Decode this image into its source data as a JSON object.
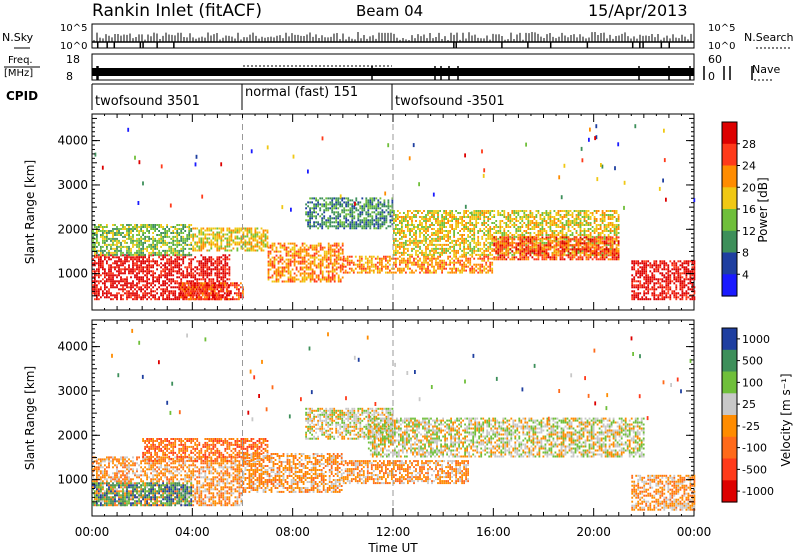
{
  "header": {
    "station": "Rankin Inlet (fitACF)",
    "beam": "Beam 04",
    "date": "15/Apr/2013"
  },
  "noise_panel": {
    "left_label": "N.Sky",
    "right_label": "N.Search",
    "left_ticks": [
      "10^5",
      "10^0"
    ],
    "right_ticks": [
      "10^5",
      "10^0"
    ]
  },
  "freq_panel": {
    "left_label_1": "Freq.",
    "left_label_2": "[MHz]",
    "left_ticks": [
      "18",
      "8"
    ],
    "right_label": "Nave",
    "right_ticks": [
      "60",
      "0"
    ]
  },
  "cpid_panel": {
    "label": "CPID",
    "segments": [
      "twofsound 3501",
      "normal (fast) 151",
      "twofsound -3501"
    ],
    "boundaries_hours": [
      0,
      6,
      12,
      24
    ]
  },
  "chart_data": [
    {
      "type": "heatmap",
      "name": "power",
      "ylabel": "Slant Range [km]",
      "ylim": [
        180,
        4600
      ],
      "yticks": [
        "1000",
        "2000",
        "3000",
        "4000"
      ],
      "xlim": [
        0,
        24
      ],
      "colorbar_title": "Power [dB]",
      "colorbar_ticks": [
        "4",
        "8",
        "12",
        "16",
        "20",
        "24",
        "28"
      ],
      "colors": [
        "#1a1aff",
        "#1f3fa0",
        "#3d8f5a",
        "#6fbf3a",
        "#f0c814",
        "#ff8c00",
        "#ff3a1a",
        "#dd0000"
      ],
      "bands": [
        {
          "t0": 0,
          "t1": 5.5,
          "r0": 400,
          "r1": 1400,
          "level": 7
        },
        {
          "t0": 0,
          "t1": 4,
          "r0": 1400,
          "r1": 2100,
          "level": 3
        },
        {
          "t0": 3.5,
          "t1": 6,
          "r0": 400,
          "r1": 800,
          "level": 6
        },
        {
          "t0": 4,
          "t1": 7,
          "r0": 1500,
          "r1": 2000,
          "level": 4
        },
        {
          "t0": 7,
          "t1": 10,
          "r0": 800,
          "r1": 1700,
          "level": 5
        },
        {
          "t0": 8.5,
          "t1": 12,
          "r0": 2000,
          "r1": 2700,
          "level": 2
        },
        {
          "t0": 10,
          "t1": 16,
          "r0": 1000,
          "r1": 1400,
          "level": 5
        },
        {
          "t0": 12,
          "t1": 21,
          "r0": 1400,
          "r1": 2400,
          "level": 4
        },
        {
          "t0": 16,
          "t1": 21,
          "r0": 1300,
          "r1": 1800,
          "level": 6
        },
        {
          "t0": 21.5,
          "t1": 24,
          "r0": 400,
          "r1": 1300,
          "level": 7
        }
      ]
    },
    {
      "type": "heatmap",
      "name": "velocity",
      "ylabel": "Slant Range [km]",
      "ylim": [
        180,
        4600
      ],
      "yticks": [
        "1000",
        "2000",
        "3000",
        "4000"
      ],
      "xlabel": "Time UT",
      "xlim": [
        0,
        24
      ],
      "xticks": [
        "00:00",
        "04:00",
        "08:00",
        "12:00",
        "16:00",
        "20:00",
        "00:00"
      ],
      "colorbar_title": "Velocity [m s⁻¹]",
      "colorbar_ticks": [
        "1000",
        "500",
        "100",
        "25",
        "-25",
        "-100",
        "-500",
        "-1000"
      ],
      "colors": [
        "#1f3fa0",
        "#3d8f5a",
        "#6fbf3a",
        "#c8c8c8",
        "#ff8c00",
        "#ff6a1a",
        "#ff3a1a",
        "#dd0000"
      ],
      "bands": [
        {
          "t0": 0,
          "t1": 6,
          "r0": 400,
          "r1": 1500,
          "level": 4
        },
        {
          "t0": 0,
          "t1": 4,
          "r0": 400,
          "r1": 900,
          "level": 1
        },
        {
          "t0": 2,
          "t1": 7,
          "r0": 1400,
          "r1": 1900,
          "level": 5
        },
        {
          "t0": 6,
          "t1": 10,
          "r0": 700,
          "r1": 1600,
          "level": 4
        },
        {
          "t0": 8.5,
          "t1": 12,
          "r0": 1900,
          "r1": 2600,
          "level": 3
        },
        {
          "t0": 11,
          "t1": 22,
          "r0": 1500,
          "r1": 2400,
          "level": 3
        },
        {
          "t0": 10,
          "t1": 15,
          "r0": 900,
          "r1": 1400,
          "level": 4
        },
        {
          "t0": 21.5,
          "t1": 24,
          "r0": 300,
          "r1": 1100,
          "level": 4
        }
      ]
    }
  ]
}
